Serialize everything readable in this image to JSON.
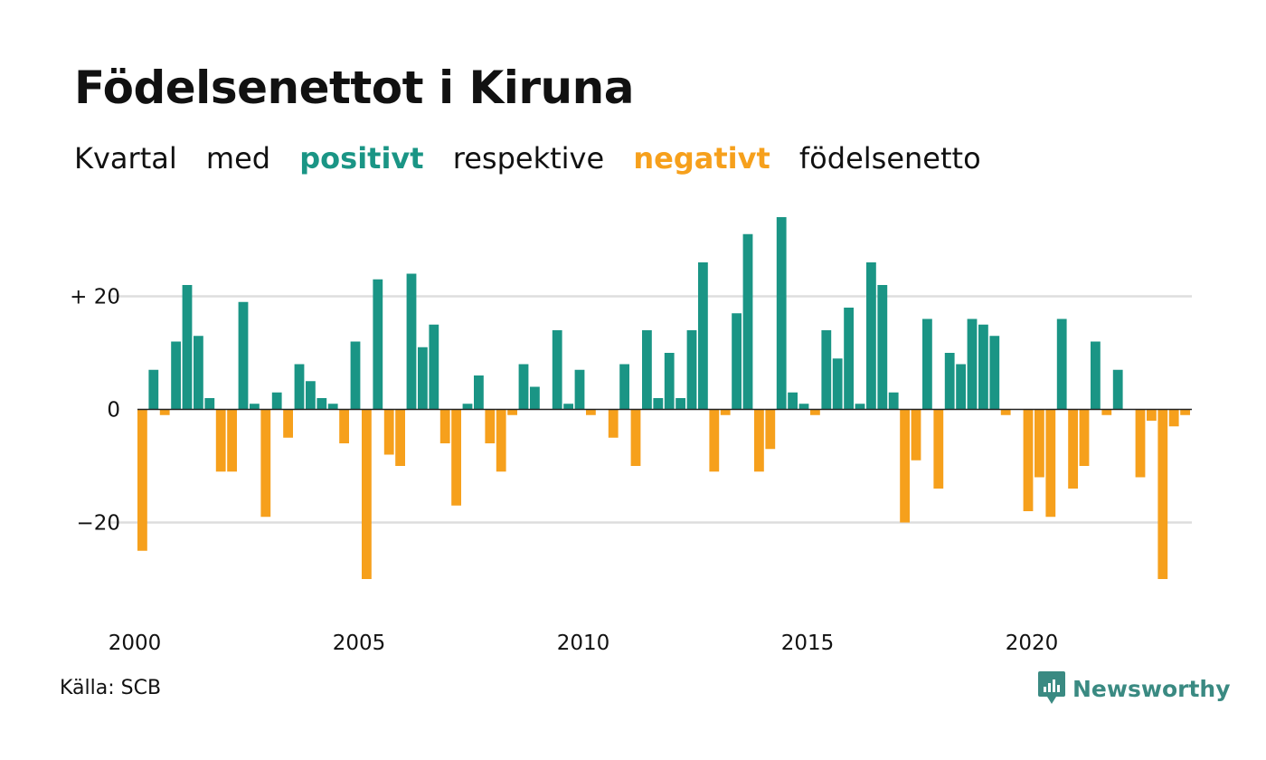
{
  "title": "Födelsenettot i Kiruna",
  "subtitle": {
    "part1": "Kvartal",
    "part2": "med",
    "positive": "positivt",
    "part3": "respektive",
    "negative": "negativt",
    "part4": "födelsenetto"
  },
  "source": "Källa: SCB",
  "brand": {
    "name": "Newsworthy",
    "icon": "newsworthy-logo-icon"
  },
  "colors": {
    "positive": "#1a9585",
    "negative": "#f6a01c",
    "grid": "#dddddd",
    "zero_line": "#222222",
    "brand": "#3a8a82"
  },
  "chart_data": {
    "type": "bar",
    "title": "Födelsenettot i Kiruna",
    "subtitle": "Kvartal med positivt respektive negativt födelsenetto",
    "xlabel": "",
    "ylabel": "",
    "x_start": {
      "year": 2000,
      "quarter": 1
    },
    "x_ticks": [
      "2000",
      "2005",
      "2010",
      "2015",
      "2020"
    ],
    "y_ticks": [
      {
        "value": 20,
        "label": "+ 20"
      },
      {
        "value": 0,
        "label": "0"
      },
      {
        "value": -20,
        "label": "−20"
      }
    ],
    "ylim": [
      -35,
      35
    ],
    "grid": true,
    "values": [
      -25,
      7,
      -1,
      12,
      22,
      13,
      2,
      -11,
      -11,
      19,
      1,
      -19,
      3,
      -5,
      8,
      5,
      2,
      1,
      -6,
      12,
      -30,
      23,
      -8,
      -10,
      24,
      11,
      15,
      -6,
      -17,
      1,
      6,
      -6,
      -11,
      -1,
      8,
      4,
      0,
      14,
      1,
      7,
      -1,
      0,
      -5,
      8,
      -10,
      14,
      2,
      10,
      2,
      14,
      26,
      -11,
      -1,
      17,
      31,
      -11,
      -7,
      34,
      3,
      1,
      -1,
      14,
      9,
      18,
      1,
      26,
      22,
      3,
      -20,
      -9,
      16,
      -14,
      10,
      8,
      16,
      15,
      13,
      -1,
      0,
      -18,
      -12,
      -19,
      16,
      -14,
      -10,
      12,
      -1,
      7,
      0,
      -12,
      -2,
      -30,
      -3,
      -1
    ]
  }
}
